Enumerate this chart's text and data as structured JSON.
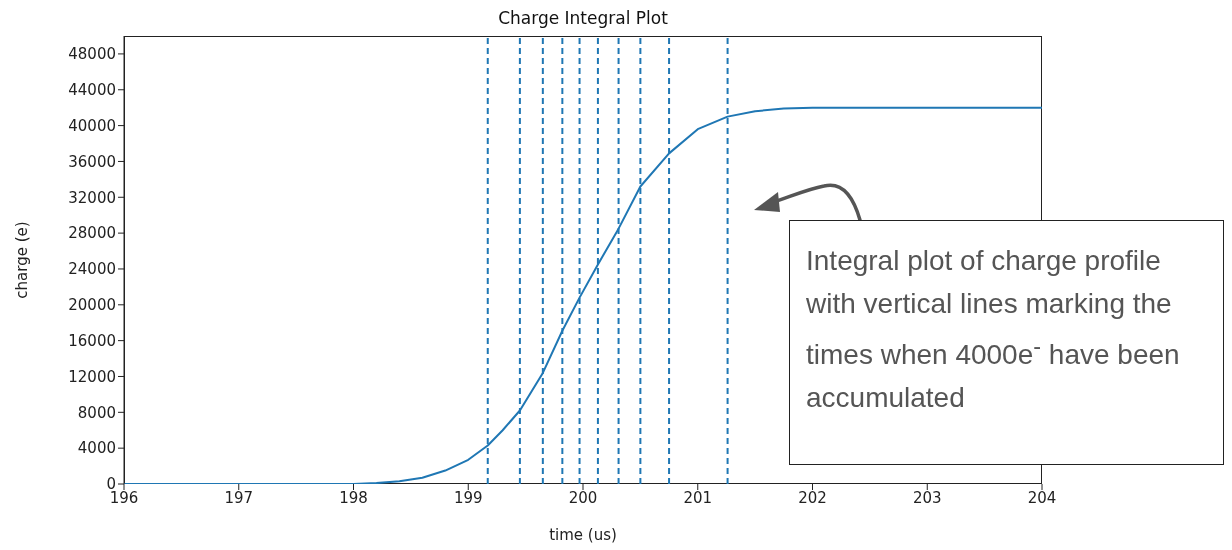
{
  "chart_data": {
    "type": "line",
    "title": "Charge Integral Plot",
    "xlabel": "time (us)",
    "ylabel": "charge (e)",
    "x": [
      196,
      196.5,
      197,
      197.5,
      198,
      198.2,
      198.4,
      198.6,
      198.8,
      199,
      199.17,
      199.3,
      199.45,
      199.65,
      199.82,
      199.97,
      200.13,
      200.31,
      200.5,
      200.75,
      201,
      201.26,
      201.5,
      201.75,
      202,
      202.5,
      203,
      204
    ],
    "series": [
      {
        "color": "#1f77b4",
        "values": [
          0,
          0,
          0,
          0,
          0,
          100,
          300,
          700,
          1500,
          2700,
          4300,
          6000,
          8200,
          12400,
          17100,
          20800,
          24500,
          28500,
          33200,
          36900,
          39600,
          41000,
          41600,
          41900,
          42000,
          42000,
          42000,
          42000
        ]
      }
    ],
    "xlim": [
      196,
      204
    ],
    "xticks": [
      196,
      197,
      198,
      199,
      200,
      201,
      202,
      203,
      204
    ],
    "ylim": [
      0,
      50000
    ],
    "yticks": [
      0,
      4000,
      8000,
      12000,
      16000,
      20000,
      24000,
      28000,
      32000,
      36000,
      40000,
      44000,
      48000
    ],
    "ref_lines": [
      {
        "axis": "x",
        "value": 199.17,
        "color": "#1f77b4",
        "line_style": "dashed"
      },
      {
        "axis": "x",
        "value": 199.45,
        "color": "#1f77b4",
        "line_style": "dashed"
      },
      {
        "axis": "x",
        "value": 199.65,
        "color": "#1f77b4",
        "line_style": "dashed"
      },
      {
        "axis": "x",
        "value": 199.82,
        "color": "#1f77b4",
        "line_style": "dashed"
      },
      {
        "axis": "x",
        "value": 199.97,
        "color": "#1f77b4",
        "line_style": "dashed"
      },
      {
        "axis": "x",
        "value": 200.13,
        "color": "#1f77b4",
        "line_style": "dashed"
      },
      {
        "axis": "x",
        "value": 200.31,
        "color": "#1f77b4",
        "line_style": "dashed"
      },
      {
        "axis": "x",
        "value": 200.5,
        "color": "#1f77b4",
        "line_style": "dashed"
      },
      {
        "axis": "x",
        "value": 200.75,
        "color": "#1f77b4",
        "line_style": "dashed"
      },
      {
        "axis": "x",
        "value": 201.26,
        "color": "#1f77b4",
        "line_style": "dashed"
      }
    ],
    "annotations": [
      "Integral plot of charge profile with vertical lines marking the times when 4000e$^{-}$ have been accumulated"
    ],
    "grid": false,
    "legend": false
  }
}
